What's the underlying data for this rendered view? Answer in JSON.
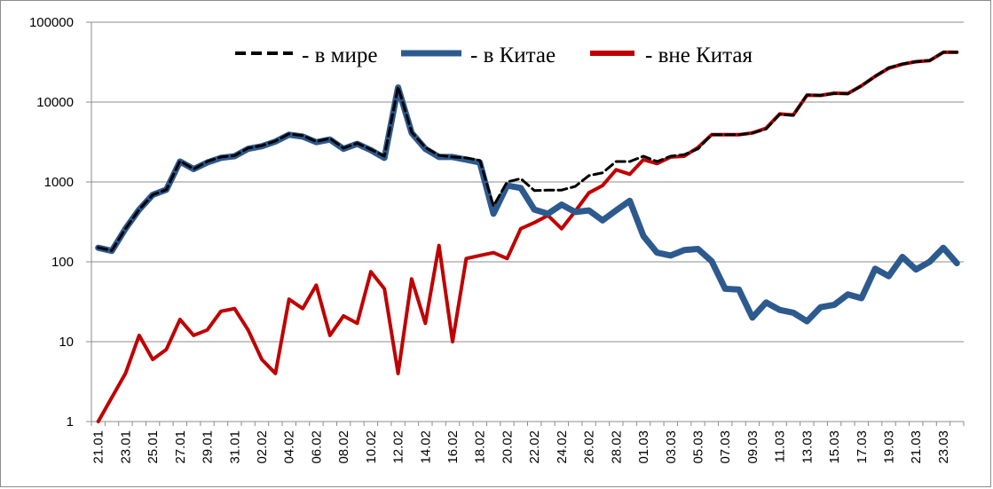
{
  "chart_data": {
    "type": "line",
    "y_scale": "log",
    "ylim": [
      1,
      100000
    ],
    "y_ticks": [
      "1",
      "10",
      "100",
      "1000",
      "10000",
      "100000"
    ],
    "grid": "horizontal",
    "legend_position": "top",
    "x_tick_labels": [
      "21.01",
      "23.01",
      "25.01",
      "27.01",
      "29.01",
      "31.01",
      "02.02",
      "04.02",
      "06.02",
      "08.02",
      "10.02",
      "12.02",
      "14.02",
      "16.02",
      "18.02",
      "20.02",
      "22.02",
      "24.02",
      "26.02",
      "28.02",
      "01.03",
      "03.03",
      "05.03",
      "07.03",
      "09.03",
      "11.03",
      "13.03",
      "15.03",
      "17.03",
      "19.03",
      "21.03",
      "23.03"
    ],
    "x": [
      "21.01",
      "22.01",
      "23.01",
      "24.01",
      "25.01",
      "26.01",
      "27.01",
      "28.01",
      "29.01",
      "30.01",
      "31.01",
      "01.02",
      "02.02",
      "03.02",
      "04.02",
      "05.02",
      "06.02",
      "07.02",
      "08.02",
      "09.02",
      "10.02",
      "11.02",
      "12.02",
      "13.02",
      "14.02",
      "15.02",
      "16.02",
      "17.02",
      "18.02",
      "19.02",
      "20.02",
      "21.02",
      "22.02",
      "23.02",
      "24.02",
      "25.02",
      "26.02",
      "27.02",
      "28.02",
      "29.02",
      "01.03",
      "02.03",
      "03.03",
      "04.03",
      "05.03",
      "06.03",
      "07.03",
      "08.03",
      "09.03",
      "10.03",
      "11.03",
      "12.03",
      "13.03",
      "14.03",
      "15.03",
      "16.03",
      "17.03",
      "18.03",
      "19.03",
      "20.03",
      "21.03",
      "22.03",
      "23.03",
      "24.03"
    ],
    "series": [
      {
        "name": "- в мире",
        "color": "#000000",
        "style": "dashed",
        "values": [
          151,
          138,
          260,
          450,
          690,
          800,
          1830,
          1450,
          1800,
          2050,
          2130,
          2650,
          2850,
          3250,
          4000,
          3800,
          3200,
          3500,
          2650,
          3050,
          2550,
          2100,
          15500,
          4200,
          2700,
          2150,
          2050,
          2000,
          1860,
          500,
          1000,
          1100,
          780,
          790,
          790,
          880,
          1200,
          1300,
          1800,
          1800,
          2100,
          1800,
          2100,
          2200,
          2600,
          3900,
          3900,
          3900,
          4100,
          4600,
          7000,
          6800,
          12300,
          12100,
          12800,
          12700,
          16000,
          21000,
          27000,
          30000,
          32000,
          33000,
          42000,
          42000
        ]
      },
      {
        "name": "- в Китае",
        "color": "#2d5a8e",
        "style": "solid",
        "values": [
          150,
          137,
          260,
          450,
          690,
          800,
          1800,
          1450,
          1750,
          2000,
          2100,
          2600,
          2800,
          3200,
          3900,
          3700,
          3150,
          3400,
          2600,
          3000,
          2500,
          2000,
          15200,
          4100,
          2600,
          2050,
          2050,
          1900,
          1750,
          400,
          900,
          840,
          450,
          400,
          520,
          420,
          440,
          330,
          440,
          580,
          210,
          130,
          120,
          140,
          145,
          102,
          46,
          45,
          20,
          31,
          25,
          23,
          18,
          27,
          29,
          39,
          35,
          82,
          66,
          115,
          80,
          100,
          150,
          96
        ]
      },
      {
        "name": "- вне Китая",
        "color": "#c00000",
        "style": "solid",
        "values": [
          1,
          2,
          4,
          12,
          6,
          8,
          19,
          12,
          14,
          24,
          26,
          14,
          6,
          4,
          34,
          26,
          51,
          12,
          21,
          17,
          75,
          46,
          4,
          61,
          17,
          160,
          10,
          110,
          120,
          130,
          110,
          260,
          310,
          380,
          260,
          430,
          730,
          900,
          1420,
          1250,
          1900,
          1700,
          2050,
          2100,
          2700,
          3900,
          3900,
          3900,
          4100,
          4700,
          7100,
          6900,
          12200,
          12100,
          12900,
          12800,
          16000,
          21000,
          26500,
          29800,
          32000,
          33000,
          42000,
          42000
        ]
      }
    ]
  }
}
